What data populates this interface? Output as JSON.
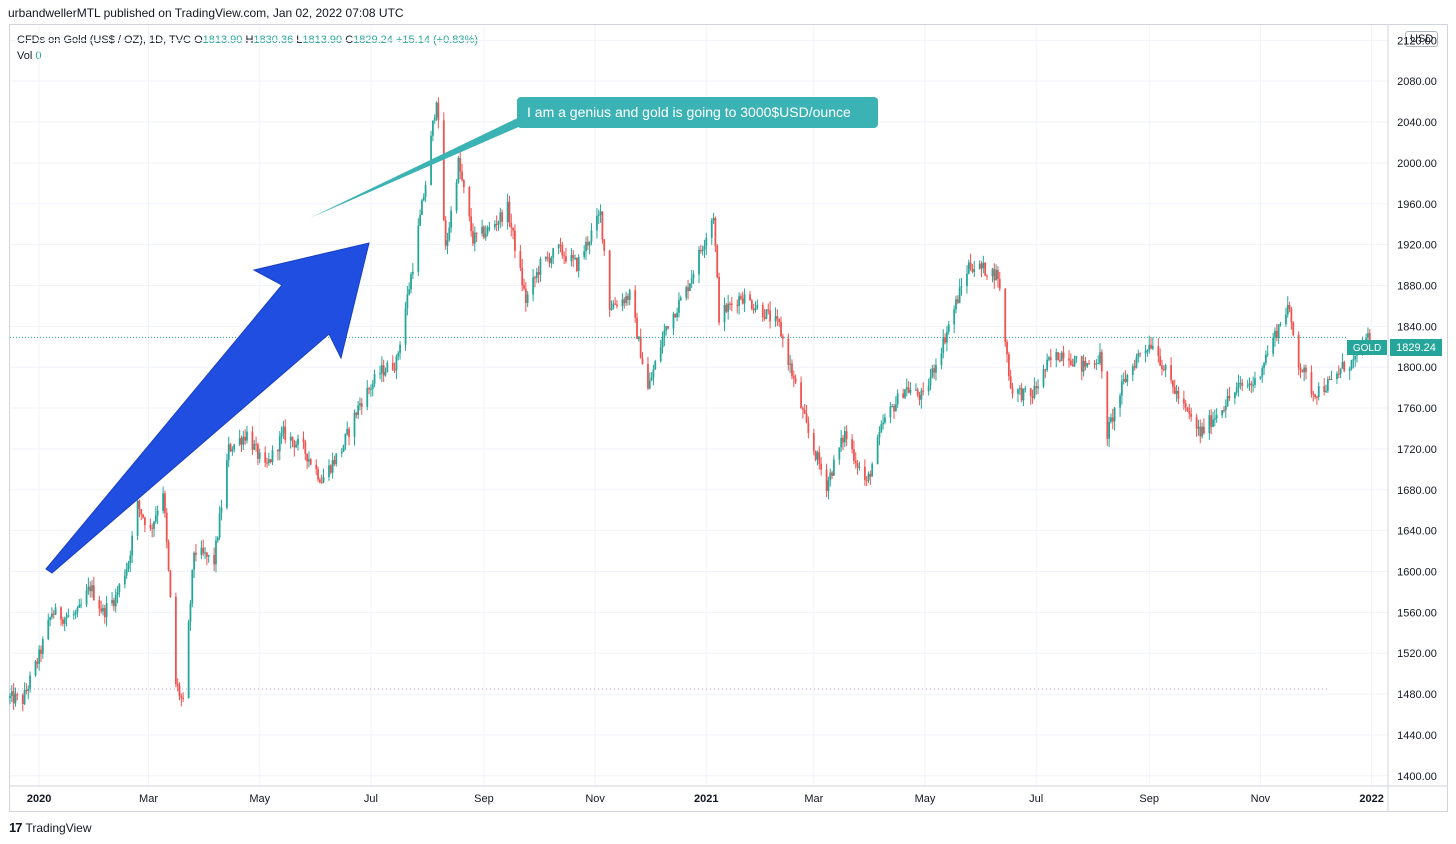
{
  "header": {
    "text": "urbandwellerMTL published on TradingView.com, Jan 02, 2022 07:08 UTC"
  },
  "legend": {
    "symbol": "CFDs on Gold (US$ / OZ), 1D, TVC",
    "open_label": "O",
    "open": "1813.90",
    "high_label": "H",
    "high": "1830.36",
    "low_label": "L",
    "low": "1813.90",
    "close_label": "C",
    "close": "1829.24",
    "change": "+15.14 (+0.83%)",
    "vol_label": "Vol",
    "vol": "0"
  },
  "currency": "USD",
  "price_tag": {
    "label": "GOLD",
    "value": "1829.24"
  },
  "annotation": {
    "text": "I am a genius and gold is going to 3000$USD/ounce"
  },
  "footer": {
    "logo": "17",
    "brand": "TradingView"
  },
  "colors": {
    "up": "#26a69a",
    "down": "#ef5350",
    "arrow": "#1f4ee0",
    "callout": "#3bb3b5",
    "grid": "#f0f3fa"
  },
  "chart_data": {
    "type": "candlestick",
    "title": "",
    "xlabel": "",
    "ylabel": "",
    "ylim": [
      1390,
      2135
    ],
    "xlim": [
      "2019-12-16",
      "2022-01-10"
    ],
    "y_ticks": [
      "2120.00",
      "2080.00",
      "2040.00",
      "2000.00",
      "1960.00",
      "1920.00",
      "1880.00",
      "1840.00",
      "1800.00",
      "1760.00",
      "1720.00",
      "1680.00",
      "1640.00",
      "1600.00",
      "1560.00",
      "1520.00",
      "1480.00",
      "1440.00",
      "1400.00"
    ],
    "x_ticks": [
      {
        "date": "2020-01-01",
        "label": "2020",
        "bold": true
      },
      {
        "date": "2020-03-01",
        "label": "Mar"
      },
      {
        "date": "2020-05-01",
        "label": "May"
      },
      {
        "date": "2020-07-01",
        "label": "Jul"
      },
      {
        "date": "2020-09-01",
        "label": "Sep"
      },
      {
        "date": "2020-11-01",
        "label": "Nov"
      },
      {
        "date": "2021-01-01",
        "label": "2021",
        "bold": true
      },
      {
        "date": "2021-03-01",
        "label": "Mar"
      },
      {
        "date": "2021-05-01",
        "label": "May"
      },
      {
        "date": "2021-07-01",
        "label": "Jul"
      },
      {
        "date": "2021-09-01",
        "label": "Sep"
      },
      {
        "date": "2021-11-01",
        "label": "Nov"
      },
      {
        "date": "2022-01-01",
        "label": "2022",
        "bold": true
      }
    ],
    "last_price": 1829.24,
    "reference_line": 1485,
    "series": [
      {
        "name": "GOLD",
        "close_path": [
          [
            "2019-12-16",
            1476
          ],
          [
            "2019-12-23",
            1474
          ],
          [
            "2020-01-01",
            1517
          ],
          [
            "2020-01-08",
            1560
          ],
          [
            "2020-01-15",
            1555
          ],
          [
            "2020-01-22",
            1558
          ],
          [
            "2020-01-29",
            1585
          ],
          [
            "2020-02-05",
            1560
          ],
          [
            "2020-02-12",
            1575
          ],
          [
            "2020-02-19",
            1610
          ],
          [
            "2020-02-24",
            1665
          ],
          [
            "2020-03-02",
            1640
          ],
          [
            "2020-03-09",
            1680
          ],
          [
            "2020-03-16",
            1490
          ],
          [
            "2020-03-20",
            1470
          ],
          [
            "2020-03-26",
            1620
          ],
          [
            "2020-04-06",
            1610
          ],
          [
            "2020-04-14",
            1720
          ],
          [
            "2020-04-24",
            1735
          ],
          [
            "2020-05-04",
            1700
          ],
          [
            "2020-05-14",
            1735
          ],
          [
            "2020-05-25",
            1720
          ],
          [
            "2020-06-04",
            1690
          ],
          [
            "2020-06-15",
            1720
          ],
          [
            "2020-06-25",
            1765
          ],
          [
            "2020-07-06",
            1795
          ],
          [
            "2020-07-15",
            1805
          ],
          [
            "2020-07-24",
            1900
          ],
          [
            "2020-07-31",
            1980
          ],
          [
            "2020-08-06",
            2065
          ],
          [
            "2020-08-11",
            1915
          ],
          [
            "2020-08-18",
            2000
          ],
          [
            "2020-08-26",
            1925
          ],
          [
            "2020-09-04",
            1935
          ],
          [
            "2020-09-14",
            1955
          ],
          [
            "2020-09-24",
            1865
          ],
          [
            "2020-10-02",
            1900
          ],
          [
            "2020-10-12",
            1915
          ],
          [
            "2020-10-22",
            1900
          ],
          [
            "2020-11-04",
            1950
          ],
          [
            "2020-11-09",
            1860
          ],
          [
            "2020-11-20",
            1870
          ],
          [
            "2020-11-30",
            1778
          ],
          [
            "2020-12-10",
            1840
          ],
          [
            "2020-12-21",
            1875
          ],
          [
            "2021-01-05",
            1950
          ],
          [
            "2021-01-08",
            1850
          ],
          [
            "2021-01-20",
            1870
          ],
          [
            "2021-02-01",
            1855
          ],
          [
            "2021-02-10",
            1840
          ],
          [
            "2021-02-26",
            1735
          ],
          [
            "2021-03-08",
            1685
          ],
          [
            "2021-03-18",
            1735
          ],
          [
            "2021-03-30",
            1685
          ],
          [
            "2021-04-08",
            1745
          ],
          [
            "2021-04-20",
            1780
          ],
          [
            "2021-04-30",
            1770
          ],
          [
            "2021-05-12",
            1830
          ],
          [
            "2021-05-25",
            1900
          ],
          [
            "2021-06-04",
            1895
          ],
          [
            "2021-06-10",
            1890
          ],
          [
            "2021-06-17",
            1780
          ],
          [
            "2021-06-28",
            1770
          ],
          [
            "2021-07-08",
            1805
          ],
          [
            "2021-07-16",
            1815
          ],
          [
            "2021-07-26",
            1800
          ],
          [
            "2021-08-05",
            1810
          ],
          [
            "2021-08-09",
            1735
          ],
          [
            "2021-08-18",
            1785
          ],
          [
            "2021-08-27",
            1815
          ],
          [
            "2021-09-03",
            1825
          ],
          [
            "2021-09-10",
            1795
          ],
          [
            "2021-09-20",
            1760
          ],
          [
            "2021-09-29",
            1735
          ],
          [
            "2021-10-08",
            1755
          ],
          [
            "2021-10-20",
            1780
          ],
          [
            "2021-10-29",
            1785
          ],
          [
            "2021-11-05",
            1815
          ],
          [
            "2021-11-16",
            1860
          ],
          [
            "2021-11-22",
            1805
          ],
          [
            "2021-11-30",
            1775
          ],
          [
            "2021-12-10",
            1785
          ],
          [
            "2021-12-16",
            1800
          ],
          [
            "2021-12-22",
            1805
          ],
          [
            "2021-12-31",
            1829
          ]
        ]
      }
    ]
  }
}
